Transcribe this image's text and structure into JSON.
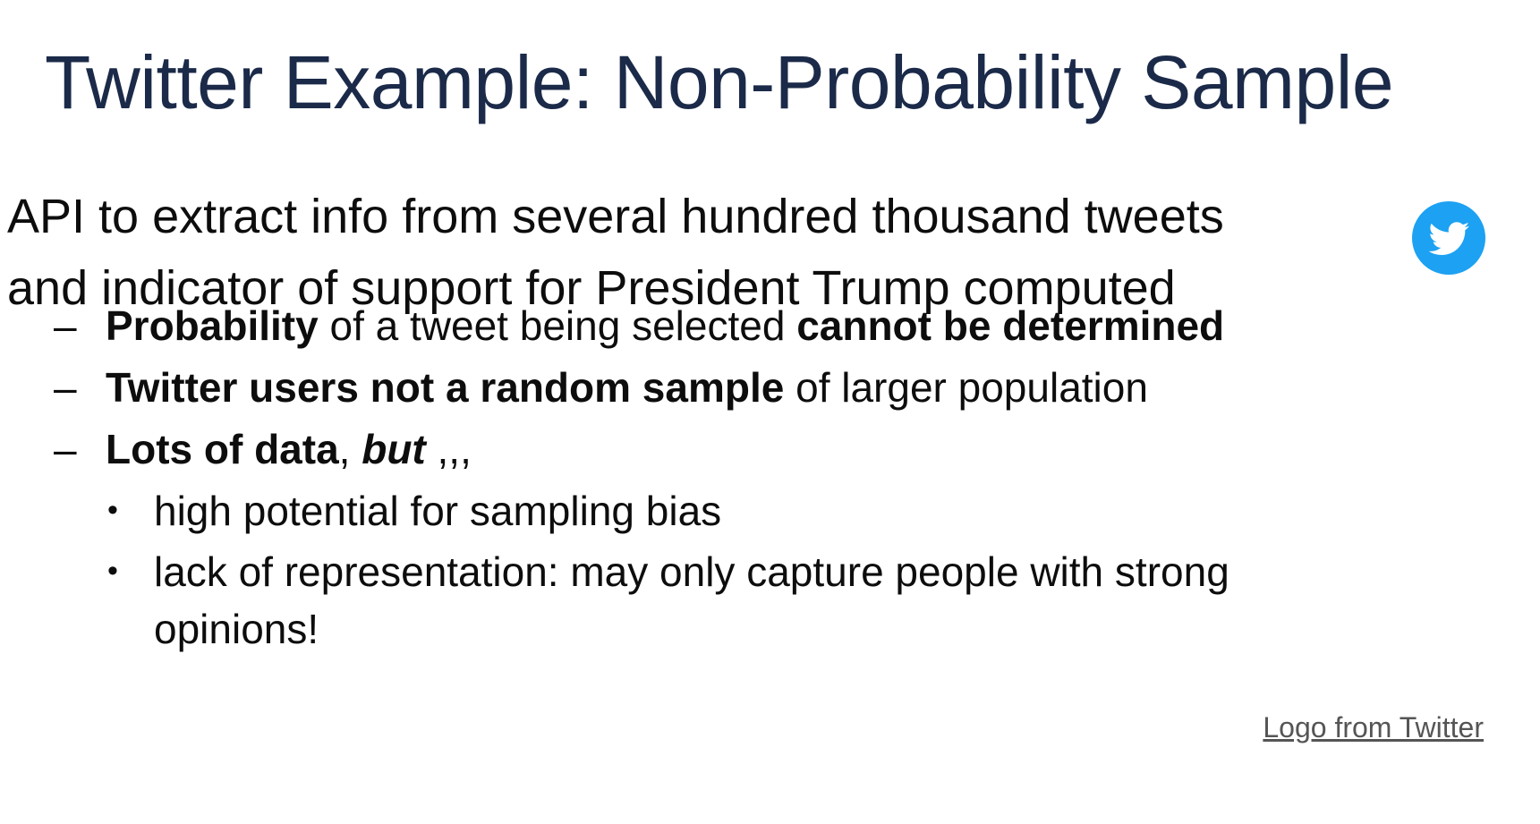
{
  "slide": {
    "title": "Twitter Example: Non-Probability Sample",
    "main_text": [
      "API to extract info from several hundred thousand tweets",
      "and indicator of support for President Trump computed"
    ],
    "points": [
      {
        "bold_1": "Probability",
        "text_1": " of a tweet being selected ",
        "bold_2": "cannot be determined"
      },
      {
        "bold_1": "Twitter users not a random sample",
        "text_1": " of larger population"
      },
      {
        "bold_1": "Lots of data",
        "text_1": ", ",
        "italic_bold": "but",
        "text_2": " ,,,"
      }
    ],
    "bullets": [
      "high potential for sampling bias",
      "lack of representation: may only capture people with strong",
      "opinions!"
    ],
    "dash": "–",
    "bullet_mark": "•",
    "logo_credit": "Logo from Twitter"
  },
  "colors": {
    "title": "#1b2a49",
    "text": "#0d0d0d",
    "twitter_blue": "#1da1f2",
    "credit": "#555555"
  },
  "icons": {
    "twitter": "twitter-bird-icon"
  }
}
